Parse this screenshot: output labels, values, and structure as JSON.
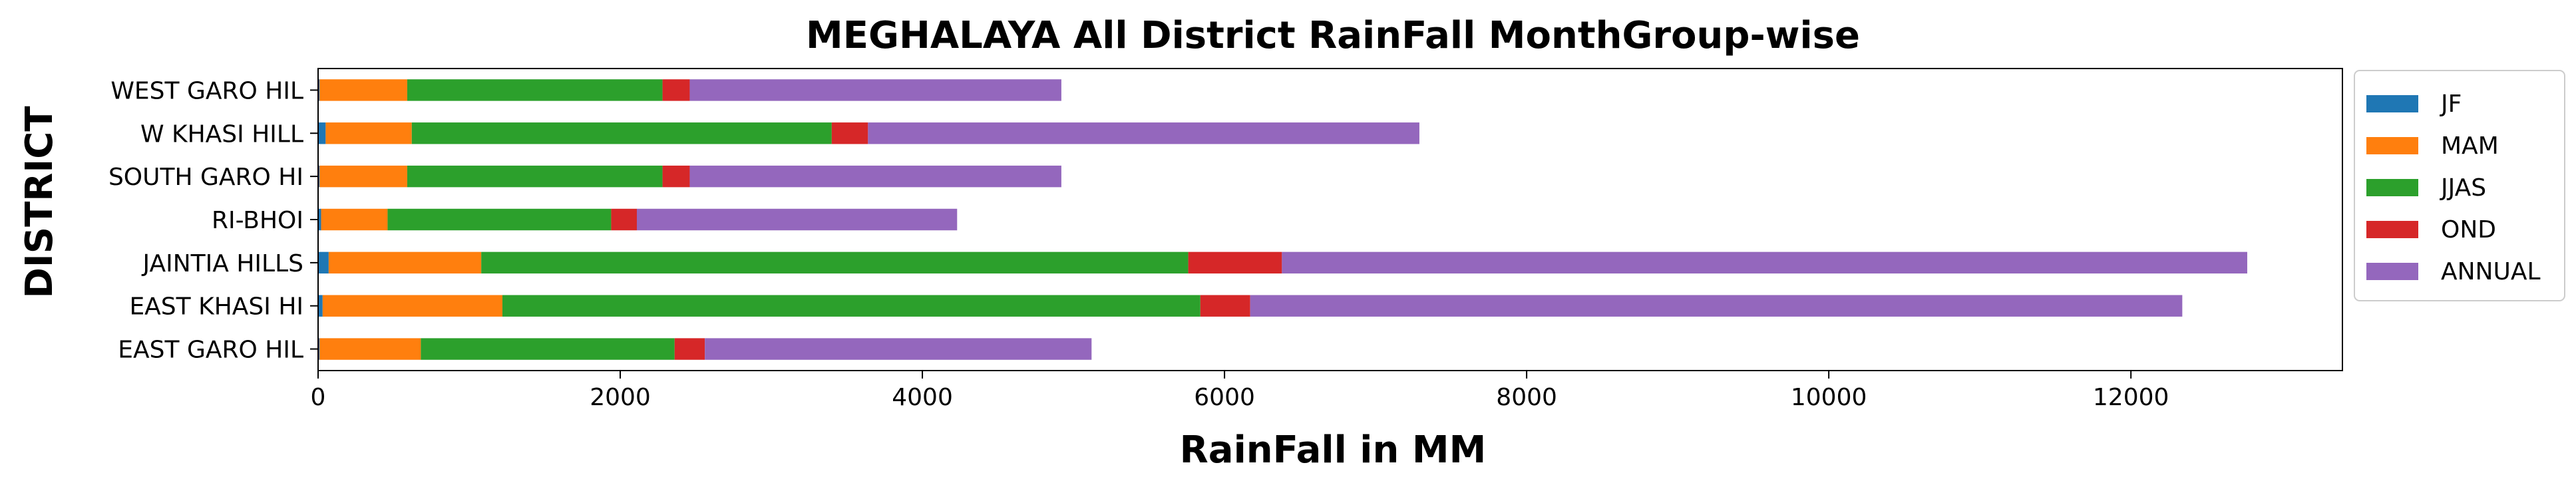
{
  "chart_data": {
    "type": "bar",
    "orientation": "horizontal",
    "stacked": true,
    "title": "MEGHALAYA All District RainFall MonthGroup-wise",
    "xlabel": "RainFall in MM",
    "ylabel": "DISTRICT",
    "xlim": [
      0,
      13400
    ],
    "xticks": [
      0,
      2000,
      4000,
      6000,
      8000,
      10000,
      12000
    ],
    "grid": false,
    "legend_position": "outside-right",
    "categories": [
      "EAST GARO HIL",
      "EAST KHASI HI",
      "JAINTIA HILLS",
      "RI-BHOI",
      "SOUTH GARO HI",
      "W KHASI HILL",
      "WEST GARO HIL"
    ],
    "series": [
      {
        "name": "JF",
        "color": "#1f77b4",
        "values": [
          10,
          30,
          70,
          20,
          10,
          50,
          10
        ]
      },
      {
        "name": "MAM",
        "color": "#ff7f0e",
        "values": [
          670,
          1190,
          1010,
          440,
          580,
          570,
          580
        ]
      },
      {
        "name": "JJAS",
        "color": "#2ca02c",
        "values": [
          1680,
          4620,
          4680,
          1480,
          1690,
          2780,
          1690
        ]
      },
      {
        "name": "OND",
        "color": "#d62728",
        "values": [
          200,
          330,
          620,
          170,
          180,
          240,
          180
        ]
      },
      {
        "name": "ANNUAL",
        "color": "#9467bd",
        "values": [
          2560,
          6170,
          6390,
          2120,
          2460,
          3650,
          2460
        ]
      }
    ]
  }
}
